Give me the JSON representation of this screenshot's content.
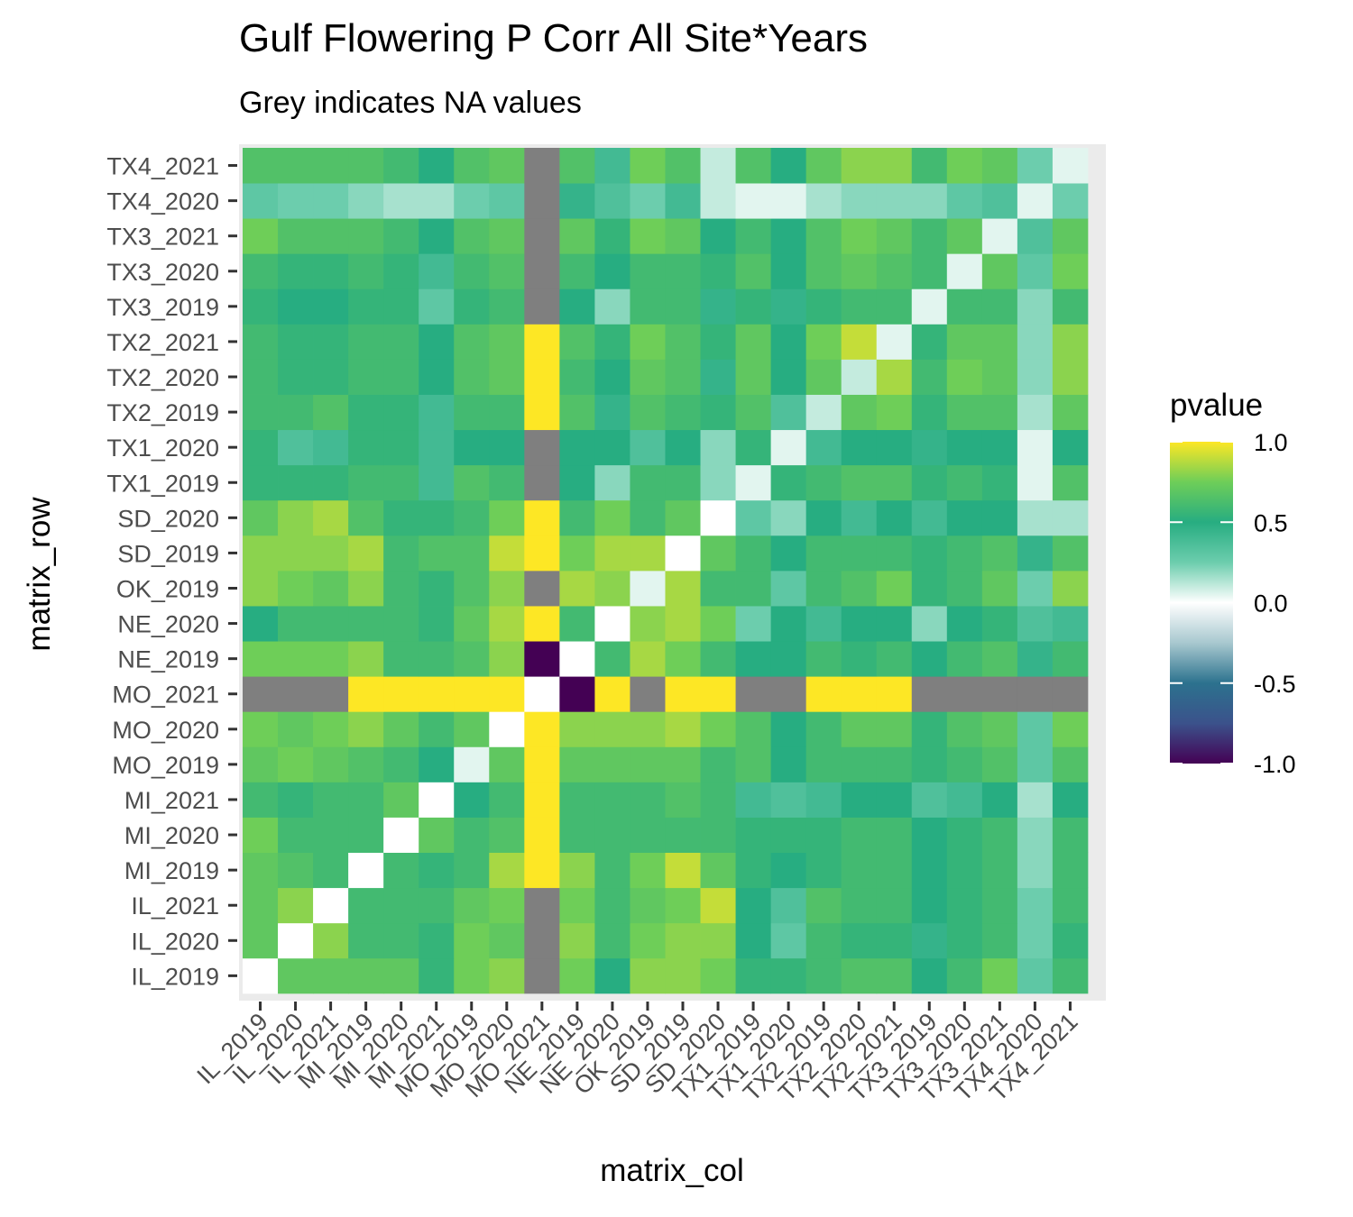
{
  "chart_data": {
    "type": "heatmap",
    "title": "Gulf Flowering P Corr All Site*Years",
    "subtitle": "Grey indicates NA values",
    "xlabel": "matrix_col",
    "ylabel": "matrix_row",
    "labels": [
      "IL_2019",
      "IL_2020",
      "IL_2021",
      "MI_2019",
      "MI_2020",
      "MI_2021",
      "MO_2019",
      "MO_2020",
      "MO_2021",
      "NE_2019",
      "NE_2020",
      "OK_2019",
      "SD_2019",
      "SD_2020",
      "TX1_2019",
      "TX1_2020",
      "TX2_2019",
      "TX2_2020",
      "TX2_2021",
      "TX3_2019",
      "TX3_2020",
      "TX3_2021",
      "TX4_2020",
      "TX4_2021"
    ],
    "legend": {
      "title": "pvalue",
      "ticks": [
        1.0,
        0.5,
        0.0,
        -0.5,
        -1.0
      ],
      "tick_labels": [
        "1.0",
        "0.5",
        "0.0",
        "-0.5",
        "-1.0"
      ],
      "range": [
        -1,
        1
      ],
      "na_color": "#7f7f7f"
    },
    "matrix": [
      [
        0.0,
        0.7,
        0.7,
        0.7,
        0.7,
        0.55,
        0.75,
        0.8,
        null,
        0.75,
        0.5,
        0.8,
        0.8,
        0.75,
        0.55,
        0.55,
        0.6,
        0.65,
        0.65,
        0.5,
        0.6,
        0.75,
        0.3,
        0.6
      ],
      [
        0.7,
        0.0,
        0.8,
        0.6,
        0.6,
        0.55,
        0.75,
        0.7,
        null,
        0.8,
        0.6,
        0.75,
        0.8,
        0.8,
        0.5,
        0.3,
        0.6,
        0.55,
        0.55,
        0.45,
        0.55,
        0.6,
        0.25,
        0.55
      ],
      [
        0.7,
        0.8,
        0.0,
        0.6,
        0.6,
        0.6,
        0.7,
        0.75,
        null,
        0.75,
        0.6,
        0.7,
        0.75,
        0.9,
        0.5,
        0.35,
        0.65,
        0.6,
        0.6,
        0.5,
        0.55,
        0.6,
        0.25,
        0.6
      ],
      [
        0.7,
        0.65,
        0.6,
        0.0,
        0.6,
        0.55,
        0.6,
        0.85,
        1.0,
        0.8,
        0.6,
        0.75,
        0.9,
        0.7,
        0.55,
        0.5,
        0.55,
        0.6,
        0.6,
        0.5,
        0.55,
        0.6,
        0.2,
        0.6
      ],
      [
        0.75,
        0.6,
        0.6,
        0.6,
        0.0,
        0.7,
        0.6,
        0.65,
        1.0,
        0.6,
        0.6,
        0.6,
        0.6,
        0.6,
        0.55,
        0.55,
        0.55,
        0.6,
        0.6,
        0.5,
        0.55,
        0.6,
        0.2,
        0.6
      ],
      [
        0.6,
        0.55,
        0.6,
        0.6,
        0.7,
        0.0,
        0.5,
        0.6,
        1.0,
        0.6,
        0.6,
        0.6,
        0.65,
        0.6,
        0.4,
        0.35,
        0.4,
        0.5,
        0.5,
        0.35,
        0.4,
        0.5,
        0.15,
        0.5
      ],
      [
        0.7,
        0.75,
        0.7,
        0.65,
        0.6,
        0.5,
        0.05,
        0.7,
        1.0,
        0.7,
        0.7,
        0.7,
        0.7,
        0.6,
        0.65,
        0.5,
        0.6,
        0.6,
        0.6,
        0.55,
        0.6,
        0.65,
        0.3,
        0.65
      ],
      [
        0.75,
        0.7,
        0.75,
        0.8,
        0.7,
        0.6,
        0.7,
        0.0,
        1.0,
        0.8,
        0.8,
        0.8,
        0.85,
        0.75,
        0.65,
        0.5,
        0.6,
        0.7,
        0.7,
        0.55,
        0.65,
        0.7,
        0.3,
        0.75
      ],
      [
        null,
        null,
        null,
        1.0,
        1.0,
        1.0,
        1.0,
        1.0,
        0.0,
        -1.0,
        1.0,
        null,
        1.0,
        1.0,
        null,
        null,
        1.0,
        1.0,
        1.0,
        null,
        null,
        null,
        null,
        null
      ],
      [
        0.75,
        0.75,
        0.75,
        0.8,
        0.6,
        0.6,
        0.65,
        0.8,
        -1.0,
        0.0,
        0.6,
        0.85,
        0.75,
        0.6,
        0.5,
        0.5,
        0.6,
        0.55,
        0.6,
        0.5,
        0.6,
        0.65,
        0.45,
        0.6
      ],
      [
        0.5,
        0.6,
        0.6,
        0.6,
        0.6,
        0.55,
        0.7,
        0.85,
        1.0,
        0.6,
        0.0,
        0.8,
        0.85,
        0.75,
        0.25,
        0.5,
        0.4,
        0.5,
        0.5,
        0.2,
        0.5,
        0.55,
        0.35,
        0.4
      ],
      [
        0.8,
        0.75,
        0.7,
        0.8,
        0.6,
        0.55,
        0.65,
        0.8,
        null,
        0.85,
        0.8,
        0.05,
        0.85,
        0.6,
        0.6,
        0.3,
        0.6,
        0.65,
        0.75,
        0.55,
        0.6,
        0.7,
        0.25,
        0.8
      ],
      [
        0.8,
        0.8,
        0.8,
        0.85,
        0.6,
        0.65,
        0.65,
        0.9,
        1.0,
        0.75,
        0.85,
        0.85,
        0.0,
        0.7,
        0.6,
        0.5,
        0.6,
        0.6,
        0.6,
        0.55,
        0.6,
        0.65,
        0.45,
        0.65
      ],
      [
        0.7,
        0.8,
        0.85,
        0.65,
        0.55,
        0.55,
        0.6,
        0.75,
        1.0,
        0.6,
        0.75,
        0.6,
        0.7,
        0.0,
        0.3,
        0.2,
        0.5,
        0.4,
        0.5,
        0.4,
        0.5,
        0.5,
        0.15,
        0.15
      ],
      [
        0.55,
        0.55,
        0.55,
        0.6,
        0.6,
        0.4,
        0.65,
        0.6,
        null,
        0.5,
        0.2,
        0.6,
        0.6,
        0.2,
        0.05,
        0.55,
        0.6,
        0.65,
        0.65,
        0.55,
        0.6,
        0.55,
        0.05,
        0.65
      ],
      [
        0.55,
        0.35,
        0.4,
        0.55,
        0.55,
        0.4,
        0.5,
        0.5,
        null,
        0.5,
        0.5,
        0.35,
        0.5,
        0.2,
        0.55,
        0.05,
        0.4,
        0.5,
        0.5,
        0.45,
        0.5,
        0.5,
        0.05,
        0.5
      ],
      [
        0.6,
        0.6,
        0.65,
        0.55,
        0.55,
        0.4,
        0.6,
        0.6,
        1.0,
        0.65,
        0.45,
        0.65,
        0.6,
        0.55,
        0.65,
        0.35,
        0.1,
        0.7,
        0.75,
        0.55,
        0.65,
        0.65,
        0.15,
        0.7
      ],
      [
        0.6,
        0.55,
        0.55,
        0.6,
        0.6,
        0.5,
        0.65,
        0.7,
        1.0,
        0.6,
        0.5,
        0.7,
        0.65,
        0.45,
        0.7,
        0.5,
        0.7,
        0.1,
        0.85,
        0.6,
        0.75,
        0.7,
        0.2,
        0.8
      ],
      [
        0.6,
        0.55,
        0.55,
        0.6,
        0.6,
        0.5,
        0.65,
        0.7,
        1.0,
        0.65,
        0.55,
        0.75,
        0.65,
        0.55,
        0.7,
        0.5,
        0.75,
        0.9,
        0.05,
        0.55,
        0.7,
        0.7,
        0.2,
        0.8
      ],
      [
        0.55,
        0.5,
        0.5,
        0.55,
        0.55,
        0.3,
        0.55,
        0.6,
        null,
        0.5,
        0.2,
        0.6,
        0.6,
        0.45,
        0.55,
        0.45,
        0.55,
        0.6,
        0.6,
        0.05,
        0.6,
        0.6,
        0.2,
        0.6
      ],
      [
        0.6,
        0.55,
        0.55,
        0.6,
        0.55,
        0.4,
        0.6,
        0.65,
        null,
        0.6,
        0.5,
        0.6,
        0.6,
        0.55,
        0.65,
        0.5,
        0.65,
        0.7,
        0.65,
        0.6,
        0.05,
        0.7,
        0.3,
        0.75
      ],
      [
        0.75,
        0.65,
        0.65,
        0.65,
        0.6,
        0.5,
        0.65,
        0.7,
        null,
        0.7,
        0.55,
        0.75,
        0.7,
        0.5,
        0.6,
        0.5,
        0.65,
        0.75,
        0.7,
        0.6,
        0.7,
        0.05,
        0.35,
        0.7
      ],
      [
        0.3,
        0.25,
        0.25,
        0.2,
        0.15,
        0.15,
        0.25,
        0.3,
        null,
        0.45,
        0.35,
        0.25,
        0.4,
        0.1,
        0.05,
        0.05,
        0.15,
        0.2,
        0.2,
        0.2,
        0.3,
        0.35,
        0.05,
        0.25
      ],
      [
        0.65,
        0.65,
        0.65,
        0.65,
        0.6,
        0.5,
        0.65,
        0.7,
        null,
        0.65,
        0.4,
        0.75,
        0.65,
        0.1,
        0.65,
        0.5,
        0.7,
        0.8,
        0.8,
        0.6,
        0.75,
        0.7,
        0.25,
        0.05
      ]
    ]
  }
}
